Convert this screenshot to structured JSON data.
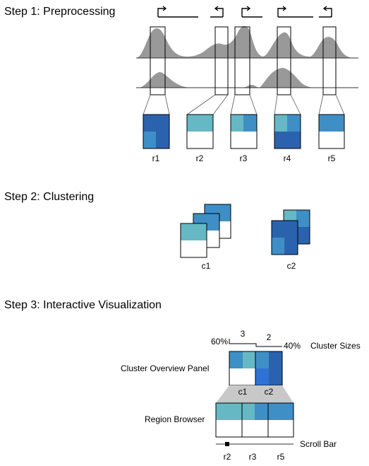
{
  "steps": {
    "step1_title": "Step 1: Preprocessing",
    "step2_title": "Step 2: Clustering",
    "step3_title": "Step 3: Interactive Visualization"
  },
  "regions": [
    "r1",
    "r2",
    "r3",
    "r4",
    "r5"
  ],
  "clusters": [
    "c1",
    "c2"
  ],
  "overview": {
    "panel_label": "Cluster Overview Panel",
    "sizes_label": "Cluster Sizes",
    "c1_count": "3",
    "c2_count": "2",
    "c1_percent": "60%",
    "c2_percent": "40%"
  },
  "browser": {
    "label": "Region Browser",
    "scroll_label": "Scroll Bar",
    "scroll_ticks": [
      "r2",
      "r3",
      "r5"
    ]
  },
  "colors": {
    "light_teal": "#66b8c4",
    "mid_blue": "#3e8fc6",
    "dark_blue": "#2b62ad",
    "signal_gray": "#999999"
  }
}
